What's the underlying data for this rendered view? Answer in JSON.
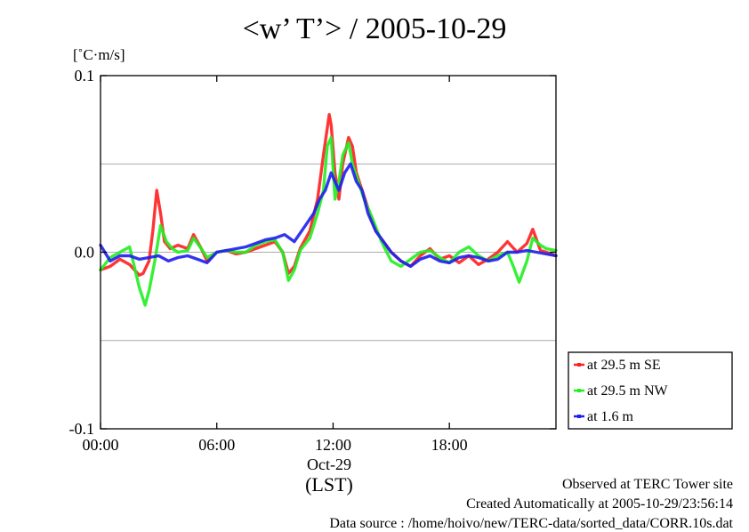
{
  "header": {
    "title": "<w’ T’> / 2005-10-29",
    "unit_label": "[˚C·m/s]"
  },
  "x_axis": {
    "date_label": "Oct-29",
    "name": "(LST)"
  },
  "footer": {
    "line1": "Observed at TERC Tower site",
    "line2": "Created Automatically at 2005-10-29/23:56:14",
    "line3": "Data source : /home/hoivo/new/TERC-data/sorted_data/CORR.10s.dat"
  },
  "colors": {
    "se": "#ff2020",
    "nw": "#22ee22",
    "near_ground": "#2020ee",
    "grid": "#aaaaaa",
    "axis": "#000000"
  },
  "chart_data": {
    "type": "line",
    "title": "<w’ T’> / 2005-10-29",
    "ylabel": "[˚C·m/s]",
    "xlabel": "(LST)",
    "xlim": [
      0,
      23.5
    ],
    "ylim": [
      -0.1,
      0.1
    ],
    "x_ticks": [
      {
        "value": 0,
        "label": "00:00"
      },
      {
        "value": 6,
        "label": "06:00"
      },
      {
        "value": 12,
        "label": "12:00"
      },
      {
        "value": 18,
        "label": "18:00"
      }
    ],
    "y_ticks": [
      {
        "value": 0.1,
        "label": "0.1"
      },
      {
        "value": 0.0,
        "label": "0.0"
      },
      {
        "value": -0.1,
        "label": "-0.1"
      }
    ],
    "grid_y": [
      0.05,
      0.0,
      -0.05
    ],
    "legend_position": "right",
    "series": [
      {
        "name": "at 29.5 m SE",
        "color": "#ff2020",
        "x": [
          0,
          0.5,
          1,
          1.5,
          2,
          2.2,
          2.5,
          2.7,
          2.9,
          3.1,
          3.3,
          3.6,
          4,
          4.5,
          4.8,
          5.2,
          5.5,
          6,
          6.5,
          7,
          7.5,
          8,
          8.5,
          9,
          9.4,
          9.7,
          10,
          10.3,
          10.8,
          11.2,
          11.5,
          11.8,
          11.9,
          12.1,
          12.3,
          12.5,
          12.8,
          13,
          13.2,
          13.5,
          13.8,
          14.2,
          14.6,
          15,
          15.5,
          16,
          16.5,
          17,
          17.5,
          18,
          18.5,
          19,
          19.5,
          20,
          20.5,
          21,
          21.5,
          22,
          22.3,
          22.7,
          23,
          23.5
        ],
        "y": [
          -0.01,
          -0.008,
          -0.004,
          -0.007,
          -0.013,
          -0.012,
          -0.005,
          0.012,
          0.035,
          0.022,
          0.006,
          0.002,
          0.004,
          0.002,
          0.01,
          0.002,
          -0.005,
          0.0,
          0.001,
          -0.001,
          0.0,
          0.002,
          0.004,
          0.006,
          0.0,
          -0.012,
          -0.008,
          0.002,
          0.012,
          0.03,
          0.055,
          0.078,
          0.072,
          0.045,
          0.03,
          0.05,
          0.065,
          0.06,
          0.045,
          0.035,
          0.025,
          0.012,
          0.006,
          0.0,
          -0.005,
          -0.008,
          -0.002,
          0.002,
          -0.004,
          -0.002,
          -0.006,
          -0.002,
          -0.007,
          -0.004,
          0.0,
          0.006,
          0.0,
          0.005,
          0.013,
          0.001,
          0.0,
          -0.002
        ]
      },
      {
        "name": "at 29.5 m NW",
        "color": "#22ee22",
        "x": [
          0,
          0.5,
          1,
          1.5,
          2,
          2.3,
          2.5,
          2.8,
          3.1,
          3.4,
          3.7,
          4,
          4.5,
          4.8,
          5.2,
          5.5,
          6,
          6.5,
          7,
          7.5,
          8,
          8.5,
          9,
          9.4,
          9.7,
          10,
          10.3,
          10.8,
          11.2,
          11.5,
          11.7,
          11.9,
          12.1,
          12.3,
          12.5,
          12.8,
          13,
          13.3,
          13.6,
          14,
          14.5,
          15,
          15.5,
          16,
          16.5,
          17,
          17.5,
          18,
          18.5,
          19,
          19.5,
          20,
          20.5,
          21,
          21.3,
          21.6,
          22,
          22.3,
          22.7,
          23,
          23.5
        ],
        "y": [
          -0.01,
          -0.003,
          0.0,
          0.003,
          -0.02,
          -0.03,
          -0.022,
          -0.005,
          0.015,
          0.006,
          0.002,
          0.0,
          0.001,
          0.008,
          0.002,
          -0.003,
          0.0,
          0.001,
          0.0,
          0.0,
          0.004,
          0.006,
          0.007,
          0.0,
          -0.016,
          -0.01,
          0.001,
          0.008,
          0.022,
          0.035,
          0.06,
          0.065,
          0.03,
          0.04,
          0.055,
          0.062,
          0.05,
          0.04,
          0.03,
          0.02,
          0.006,
          -0.005,
          -0.008,
          -0.004,
          0.0,
          0.001,
          -0.003,
          -0.006,
          0.0,
          0.003,
          -0.002,
          -0.005,
          -0.002,
          0.0,
          -0.008,
          -0.017,
          -0.005,
          0.008,
          0.004,
          0.002,
          0.001
        ]
      },
      {
        "name": "at 1.6 m",
        "color": "#2020ee",
        "x": [
          0,
          0.5,
          1,
          1.5,
          2,
          2.5,
          3,
          3.5,
          4,
          4.5,
          5,
          5.5,
          6,
          6.5,
          7,
          7.5,
          8,
          8.5,
          9,
          9.5,
          10,
          10.5,
          11,
          11.3,
          11.6,
          11.9,
          12.1,
          12.3,
          12.6,
          12.9,
          13.2,
          13.5,
          13.8,
          14.2,
          14.6,
          15,
          15.5,
          16,
          16.5,
          17,
          17.5,
          18,
          18.5,
          19,
          19.5,
          20,
          20.5,
          21,
          21.5,
          22,
          22.5,
          23,
          23.5
        ],
        "y": [
          0.004,
          -0.005,
          -0.002,
          -0.002,
          -0.004,
          -0.003,
          -0.002,
          -0.005,
          -0.003,
          -0.002,
          -0.004,
          -0.006,
          0.0,
          0.001,
          0.002,
          0.003,
          0.005,
          0.007,
          0.008,
          0.01,
          0.006,
          0.014,
          0.022,
          0.03,
          0.035,
          0.045,
          0.04,
          0.035,
          0.045,
          0.05,
          0.04,
          0.035,
          0.022,
          0.012,
          0.006,
          0.0,
          -0.005,
          -0.008,
          -0.004,
          -0.002,
          -0.005,
          -0.006,
          -0.003,
          -0.002,
          -0.003,
          -0.005,
          -0.004,
          0.0,
          0.0,
          0.001,
          0.0,
          -0.001,
          -0.002
        ]
      }
    ]
  }
}
